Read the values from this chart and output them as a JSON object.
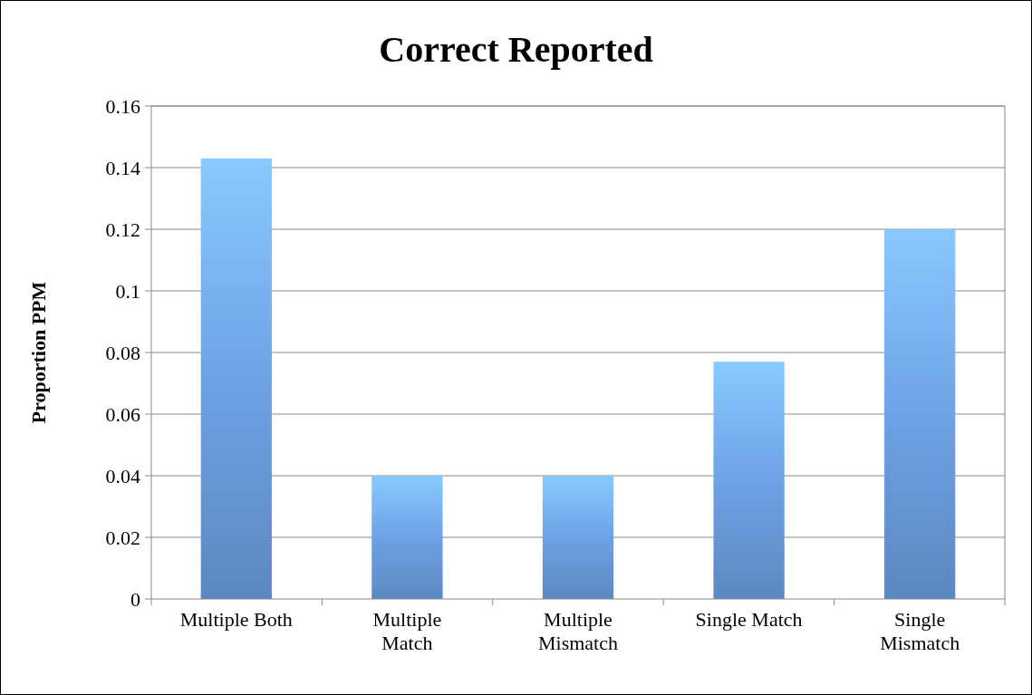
{
  "chart_data": {
    "type": "bar",
    "title": "Correct Reported",
    "ylabel": "Proportion PPM",
    "categories": [
      "Multiple Both",
      "Multiple Match",
      "Multiple Mismatch",
      "Single Match",
      "Single Mismatch"
    ],
    "values": [
      0.143,
      0.04,
      0.04,
      0.077,
      0.12
    ],
    "color": "#6ea2e6",
    "ylim": [
      0,
      0.16
    ],
    "yticks": [
      0,
      0.02,
      0.04,
      0.06,
      0.08,
      0.1,
      0.12,
      0.14,
      0.16
    ],
    "grid": "y"
  }
}
